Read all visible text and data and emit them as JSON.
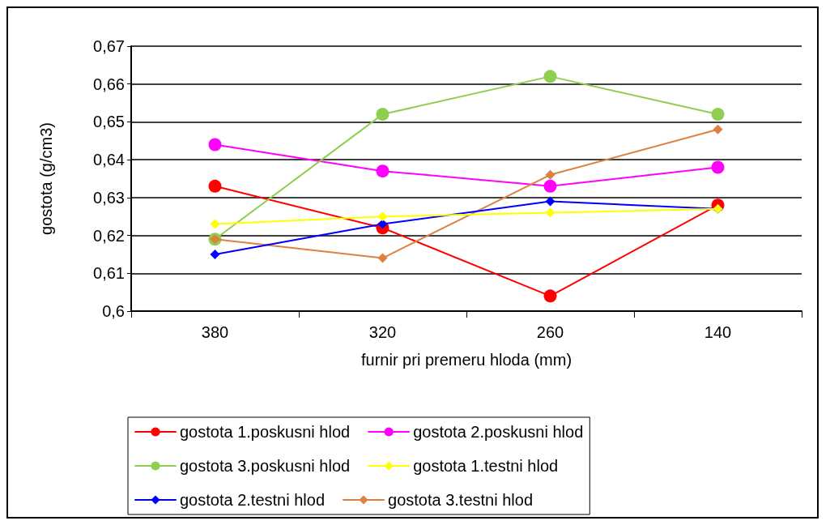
{
  "chart_data": {
    "type": "line",
    "xlabel": "furnir pri premeru hloda (mm)",
    "ylabel": "gostota (g/cm3)",
    "categories": [
      "380",
      "320",
      "260",
      "140"
    ],
    "ylim": [
      0.6,
      0.67
    ],
    "yticks": [
      {
        "value": 0.6,
        "label": "0,6"
      },
      {
        "value": 0.61,
        "label": "0,61"
      },
      {
        "value": 0.62,
        "label": "0,62"
      },
      {
        "value": 0.63,
        "label": "0,63"
      },
      {
        "value": 0.64,
        "label": "0,64"
      },
      {
        "value": 0.65,
        "label": "0,65"
      },
      {
        "value": 0.66,
        "label": "0,66"
      },
      {
        "value": 0.67,
        "label": "0,67"
      }
    ],
    "grid": "y",
    "legend": "bottom",
    "series": [
      {
        "name": "gostota 1.poskusni hlod",
        "color": "#ff0000",
        "marker": "circle",
        "values": [
          0.633,
          0.622,
          0.604,
          0.628
        ]
      },
      {
        "name": "gostota 2.poskusni hlod",
        "color": "#ff00ff",
        "marker": "circle",
        "values": [
          0.644,
          0.637,
          0.633,
          0.638
        ]
      },
      {
        "name": "gostota 3.poskusni hlod",
        "color": "#8fce50",
        "marker": "circle",
        "values": [
          0.619,
          0.652,
          0.662,
          0.652
        ]
      },
      {
        "name": "gostota 1.testni hlod",
        "color": "#ffff00",
        "marker": "diamond",
        "values": [
          0.623,
          0.625,
          0.626,
          0.627
        ]
      },
      {
        "name": "gostota 2.testni hlod",
        "color": "#0000ff",
        "marker": "diamond",
        "values": [
          0.615,
          0.623,
          0.629,
          0.627
        ]
      },
      {
        "name": "gostota 3.testni hlod",
        "color": "#dd8040",
        "marker": "diamond",
        "values": [
          0.619,
          0.614,
          0.636,
          0.648
        ]
      }
    ]
  }
}
